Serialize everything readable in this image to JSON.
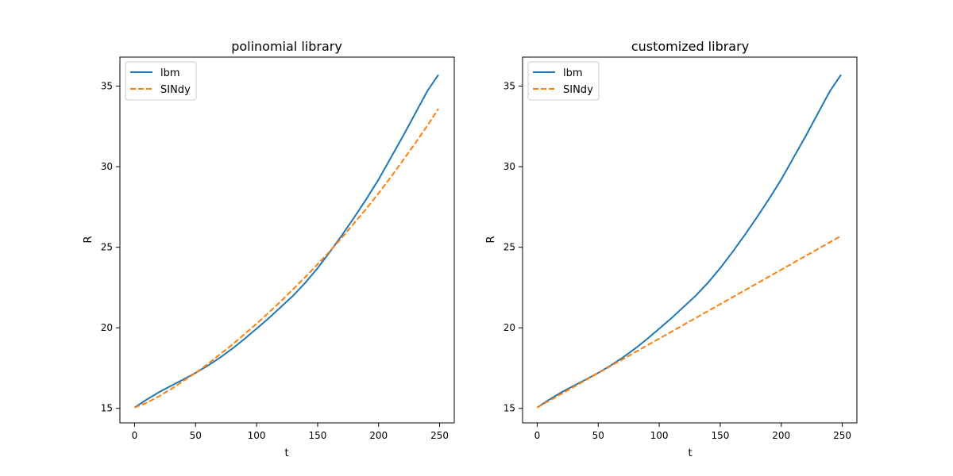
{
  "colors": {
    "lbm": "#1f77b4",
    "sindy": "#ff7f0e",
    "axes": "#000000",
    "legend_border": "#cccccc",
    "background": "#ffffff"
  },
  "chart_data": [
    {
      "type": "line",
      "title": "polinomial library",
      "xlabel": "t",
      "ylabel": "R",
      "xlim": [
        -12,
        262
      ],
      "ylim": [
        14.1,
        36.8
      ],
      "xticks": [
        0,
        50,
        100,
        150,
        200,
        250
      ],
      "yticks": [
        15,
        20,
        25,
        30,
        35
      ],
      "grid": false,
      "legend": "top-left",
      "series": [
        {
          "name": "lbm",
          "style": "solid",
          "x": [
            0,
            10,
            20,
            30,
            40,
            50,
            60,
            70,
            80,
            90,
            100,
            110,
            120,
            130,
            140,
            150,
            160,
            170,
            180,
            190,
            200,
            210,
            220,
            230,
            240,
            249
          ],
          "y": [
            15.05,
            15.55,
            16.0,
            16.4,
            16.8,
            17.2,
            17.65,
            18.15,
            18.7,
            19.3,
            19.95,
            20.6,
            21.3,
            22.0,
            22.8,
            23.7,
            24.7,
            25.75,
            26.85,
            28.0,
            29.2,
            30.55,
            31.9,
            33.3,
            34.7,
            35.7
          ]
        },
        {
          "name": "SINdy",
          "style": "dashed",
          "x": [
            0,
            10,
            20,
            30,
            40,
            50,
            60,
            70,
            80,
            90,
            100,
            110,
            120,
            130,
            140,
            150,
            160,
            170,
            180,
            190,
            200,
            210,
            220,
            230,
            240,
            249
          ],
          "y": [
            15.05,
            15.35,
            15.75,
            16.2,
            16.7,
            17.2,
            17.75,
            18.35,
            18.95,
            19.6,
            20.25,
            20.95,
            21.65,
            22.4,
            23.15,
            23.95,
            24.75,
            25.6,
            26.5,
            27.4,
            28.35,
            29.35,
            30.4,
            31.45,
            32.55,
            33.6
          ]
        }
      ]
    },
    {
      "type": "line",
      "title": "customized library",
      "xlabel": "t",
      "ylabel": "R",
      "xlim": [
        -12,
        262
      ],
      "ylim": [
        14.1,
        36.8
      ],
      "xticks": [
        0,
        50,
        100,
        150,
        200,
        250
      ],
      "yticks": [
        15,
        20,
        25,
        30,
        35
      ],
      "grid": false,
      "legend": "top-left",
      "series": [
        {
          "name": "lbm",
          "style": "solid",
          "x": [
            0,
            10,
            20,
            30,
            40,
            50,
            60,
            70,
            80,
            90,
            100,
            110,
            120,
            130,
            140,
            150,
            160,
            170,
            180,
            190,
            200,
            210,
            220,
            230,
            240,
            249
          ],
          "y": [
            15.05,
            15.55,
            16.0,
            16.4,
            16.8,
            17.2,
            17.65,
            18.15,
            18.7,
            19.3,
            19.95,
            20.6,
            21.3,
            22.0,
            22.8,
            23.7,
            24.7,
            25.75,
            26.85,
            28.0,
            29.2,
            30.55,
            31.9,
            33.3,
            34.7,
            35.7
          ]
        },
        {
          "name": "SINdy",
          "style": "dashed",
          "x": [
            0,
            249
          ],
          "y": [
            15.05,
            25.7
          ]
        }
      ]
    }
  ]
}
